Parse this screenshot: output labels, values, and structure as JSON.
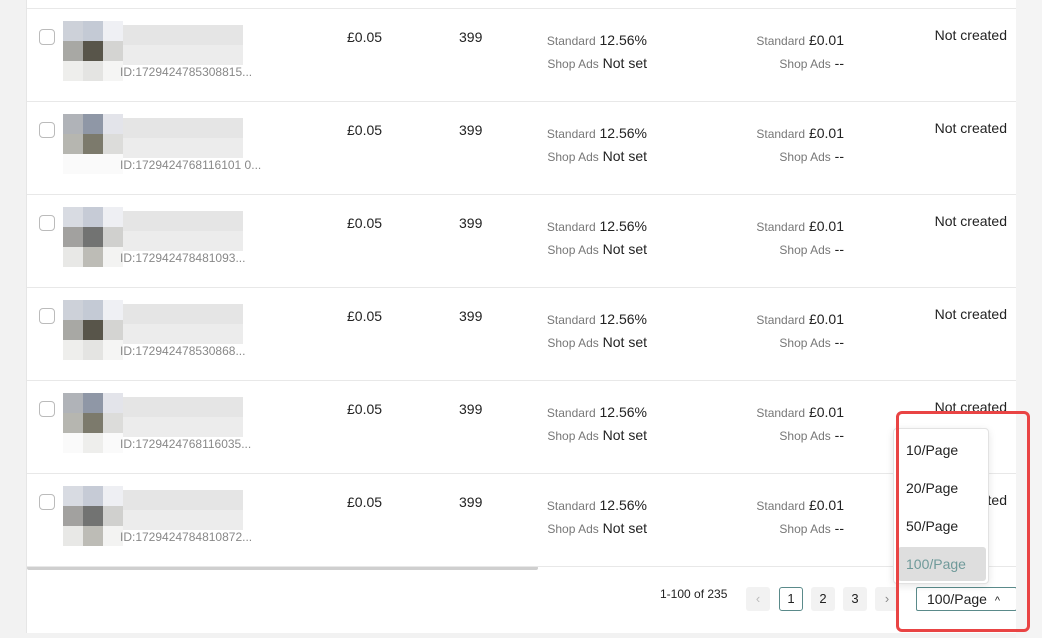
{
  "rows": [
    {
      "id": "ID:1729424785308815...",
      "price": "£0.05",
      "stock": "399",
      "commission_std_label": "Standard",
      "commission_std": "12.56%",
      "commission_ads_label": "Shop Ads",
      "commission_ads": "Not set",
      "fee_std_label": "Standard",
      "fee_std": "£0.01",
      "fee_ads_label": "Shop Ads",
      "fee_ads": "--",
      "status": "Not created"
    },
    {
      "id": "ID:1729424768116101 0...",
      "price": "£0.05",
      "stock": "399",
      "commission_std_label": "Standard",
      "commission_std": "12.56%",
      "commission_ads_label": "Shop Ads",
      "commission_ads": "Not set",
      "fee_std_label": "Standard",
      "fee_std": "£0.01",
      "fee_ads_label": "Shop Ads",
      "fee_ads": "--",
      "status": "Not created"
    },
    {
      "id": "ID:172942478481093...",
      "price": "£0.05",
      "stock": "399",
      "commission_std_label": "Standard",
      "commission_std": "12.56%",
      "commission_ads_label": "Shop Ads",
      "commission_ads": "Not set",
      "fee_std_label": "Standard",
      "fee_std": "£0.01",
      "fee_ads_label": "Shop Ads",
      "fee_ads": "--",
      "status": "Not created"
    },
    {
      "id": "ID:172942478530868...",
      "price": "£0.05",
      "stock": "399",
      "commission_std_label": "Standard",
      "commission_std": "12.56%",
      "commission_ads_label": "Shop Ads",
      "commission_ads": "Not set",
      "fee_std_label": "Standard",
      "fee_std": "£0.01",
      "fee_ads_label": "Shop Ads",
      "fee_ads": "--",
      "status": "Not created"
    },
    {
      "id": "ID:1729424768116035...",
      "price": "£0.05",
      "stock": "399",
      "commission_std_label": "Standard",
      "commission_std": "12.56%",
      "commission_ads_label": "Shop Ads",
      "commission_ads": "Not set",
      "fee_std_label": "Standard",
      "fee_std": "£0.01",
      "fee_ads_label": "Shop Ads",
      "fee_ads": "--",
      "status": "Not created"
    },
    {
      "id": "ID:1729424784810872...",
      "price": "£0.05",
      "stock": "399",
      "commission_std_label": "Standard",
      "commission_std": "12.56%",
      "commission_ads_label": "Shop Ads",
      "commission_ads": "Not set",
      "fee_std_label": "Standard",
      "fee_std": "£0.01",
      "fee_ads_label": "Shop Ads",
      "fee_ads": "--",
      "status": "Not created"
    }
  ],
  "pagination": {
    "range": "1-100 of 235",
    "prev": "‹",
    "next": "›",
    "pages": [
      "1",
      "2",
      "3"
    ],
    "current_page": "1",
    "page_size": "100/Page",
    "caret": "^"
  },
  "page_size_menu": {
    "options": [
      "10/Page",
      "20/Page",
      "50/Page",
      "100/Page"
    ],
    "selected": "100/Page"
  },
  "colors": {
    "accent": "#5a8a8a",
    "highlight_border": "#e94444"
  }
}
